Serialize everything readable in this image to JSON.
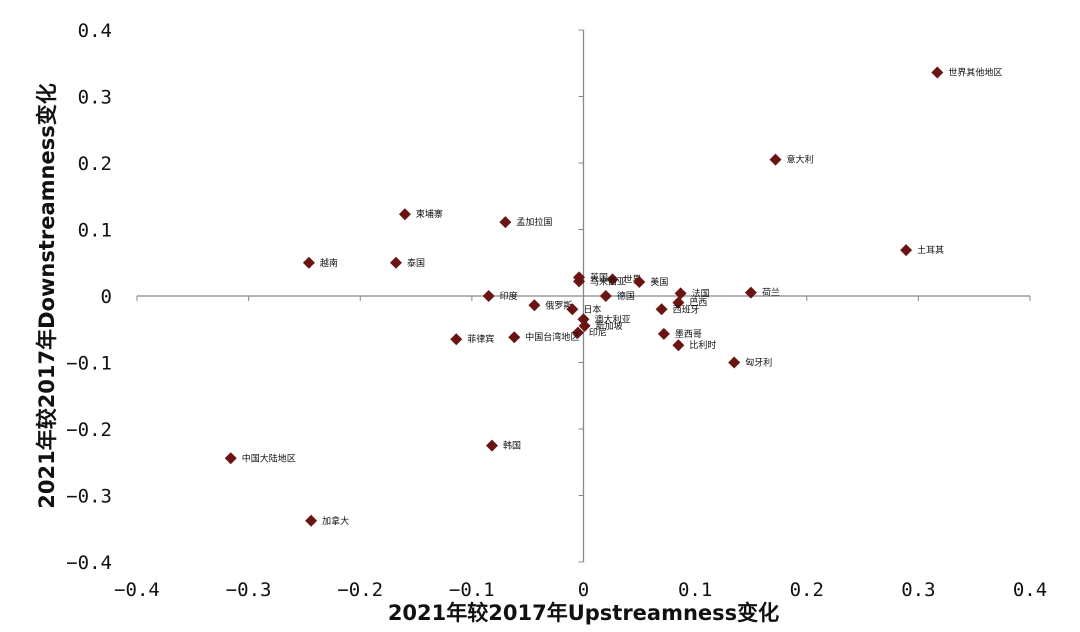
{
  "chart_data": {
    "type": "scatter",
    "title": "",
    "xlabel": "2021年较2017年Upstreamness变化",
    "ylabel": "2021年较2017年Downstreamness变化",
    "xlim": [
      -0.4,
      0.4
    ],
    "ylim": [
      -0.4,
      0.4
    ],
    "xticks": [
      -0.4,
      -0.3,
      -0.2,
      -0.1,
      0,
      0.1,
      0.2,
      0.3,
      0.4
    ],
    "yticks": [
      -0.4,
      -0.3,
      -0.2,
      -0.1,
      0,
      0.1,
      0.2,
      0.3,
      0.4
    ],
    "xtick_labels": [
      "−0.4",
      "−0.3",
      "−0.2",
      "−0.1",
      "0",
      "0.1",
      "0.2",
      "0.3",
      "0.4"
    ],
    "ytick_labels": [
      "−0.4",
      "−0.3",
      "−0.2",
      "−0.1",
      "0",
      "0.1",
      "0.2",
      "0.3",
      "0.4"
    ],
    "marker_color": "#6b1414",
    "points": [
      {
        "label": "世界其他地区",
        "x": 0.317,
        "y": 0.336
      },
      {
        "label": "意大利",
        "x": 0.172,
        "y": 0.205
      },
      {
        "label": "土耳其",
        "x": 0.289,
        "y": 0.069
      },
      {
        "label": "柬埔寨",
        "x": -0.16,
        "y": 0.123
      },
      {
        "label": "孟加拉国",
        "x": -0.07,
        "y": 0.111
      },
      {
        "label": "越南",
        "x": -0.246,
        "y": 0.05
      },
      {
        "label": "泰国",
        "x": -0.168,
        "y": 0.05
      },
      {
        "label": "英国",
        "x": -0.004,
        "y": 0.028
      },
      {
        "label": "世界",
        "x": 0.026,
        "y": 0.025
      },
      {
        "label": "马来西亚",
        "x": -0.004,
        "y": 0.022
      },
      {
        "label": "美国",
        "x": 0.05,
        "y": 0.021
      },
      {
        "label": "法国",
        "x": 0.087,
        "y": 0.004
      },
      {
        "label": "荷兰",
        "x": 0.15,
        "y": 0.005
      },
      {
        "label": "印度",
        "x": -0.085,
        "y": 0.0
      },
      {
        "label": "德国",
        "x": 0.02,
        "y": 0.0
      },
      {
        "label": "巴西",
        "x": 0.085,
        "y": -0.01
      },
      {
        "label": "俄罗斯",
        "x": -0.044,
        "y": -0.014
      },
      {
        "label": "西班牙",
        "x": 0.07,
        "y": -0.02
      },
      {
        "label": "日本",
        "x": -0.01,
        "y": -0.02
      },
      {
        "label": "澳大利亚",
        "x": 0.0,
        "y": -0.035
      },
      {
        "label": "新加坡",
        "x": 0.001,
        "y": -0.045
      },
      {
        "label": "印尼",
        "x": -0.005,
        "y": -0.055
      },
      {
        "label": "墨西哥",
        "x": 0.072,
        "y": -0.057
      },
      {
        "label": "菲律宾",
        "x": -0.114,
        "y": -0.065
      },
      {
        "label": "中国台湾地区",
        "x": -0.062,
        "y": -0.062
      },
      {
        "label": "比利时",
        "x": 0.085,
        "y": -0.074
      },
      {
        "label": "匈牙利",
        "x": 0.135,
        "y": -0.1
      },
      {
        "label": "韩国",
        "x": -0.082,
        "y": -0.225
      },
      {
        "label": "中国大陆地区",
        "x": -0.316,
        "y": -0.244
      },
      {
        "label": "加拿大",
        "x": -0.244,
        "y": -0.338
      }
    ]
  }
}
